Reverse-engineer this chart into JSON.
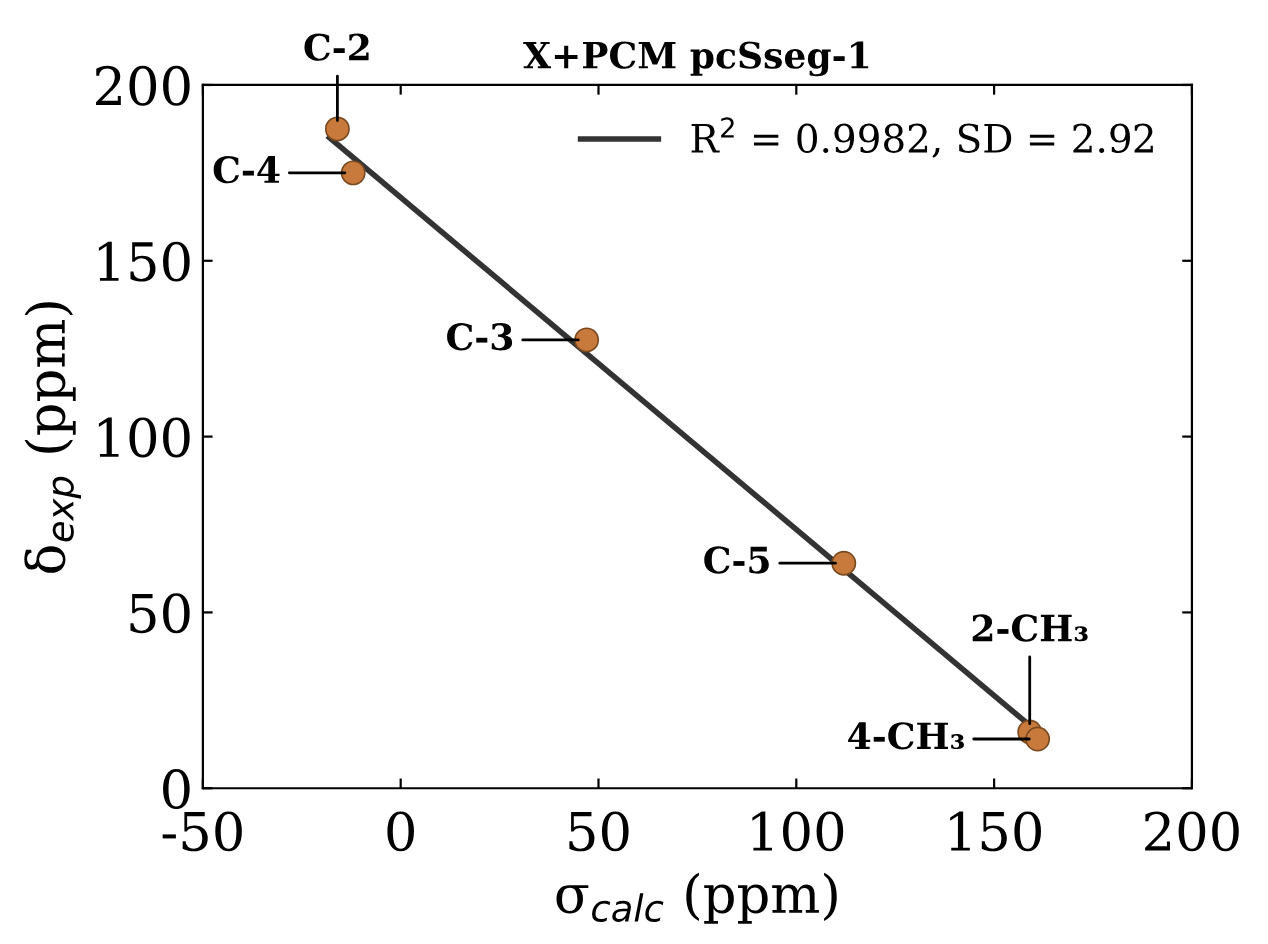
{
  "chart_data": {
    "type": "scatter",
    "title": "X+PCM pcSseg-1",
    "xlabel": "σ$_{calc}$ (ppm)",
    "ylabel": "δ$_{exp}$ (ppm)",
    "series": [
      {
        "color": "#c87a3c",
        "x": [
          -16,
          -12,
          47,
          112,
          159,
          161
        ],
        "values": [
          187.5,
          175,
          127.5,
          64,
          16,
          14
        ],
        "marker": "circle"
      },
      {
        "type": "line",
        "name": "R$^{2}$ = 0.9982, SD = 2.92",
        "color": "#333333",
        "x": [
          -18,
          161
        ],
        "values": [
          185,
          16
        ],
        "marker": "none",
        "line_style": "solid"
      }
    ],
    "annotations": [
      {
        "text": "C-2",
        "x": -16,
        "y": 187.5
      },
      {
        "text": "C-4",
        "x": -12,
        "y": 175
      },
      {
        "text": "C-3",
        "x": 47,
        "y": 127.5
      },
      {
        "text": "C-5",
        "x": 112,
        "y": 64
      },
      {
        "text": "2-CH₃",
        "x": 159,
        "y": 16
      },
      {
        "text": "4-CH₃",
        "x": 161,
        "y": 14
      }
    ],
    "xlim": [
      -50,
      200
    ],
    "xticks": [
      -50,
      0,
      50,
      100,
      150,
      200
    ],
    "ylim": [
      0,
      200
    ],
    "yticks": [
      0,
      50,
      100,
      150,
      200
    ],
    "grid": false,
    "legend": "top right"
  }
}
